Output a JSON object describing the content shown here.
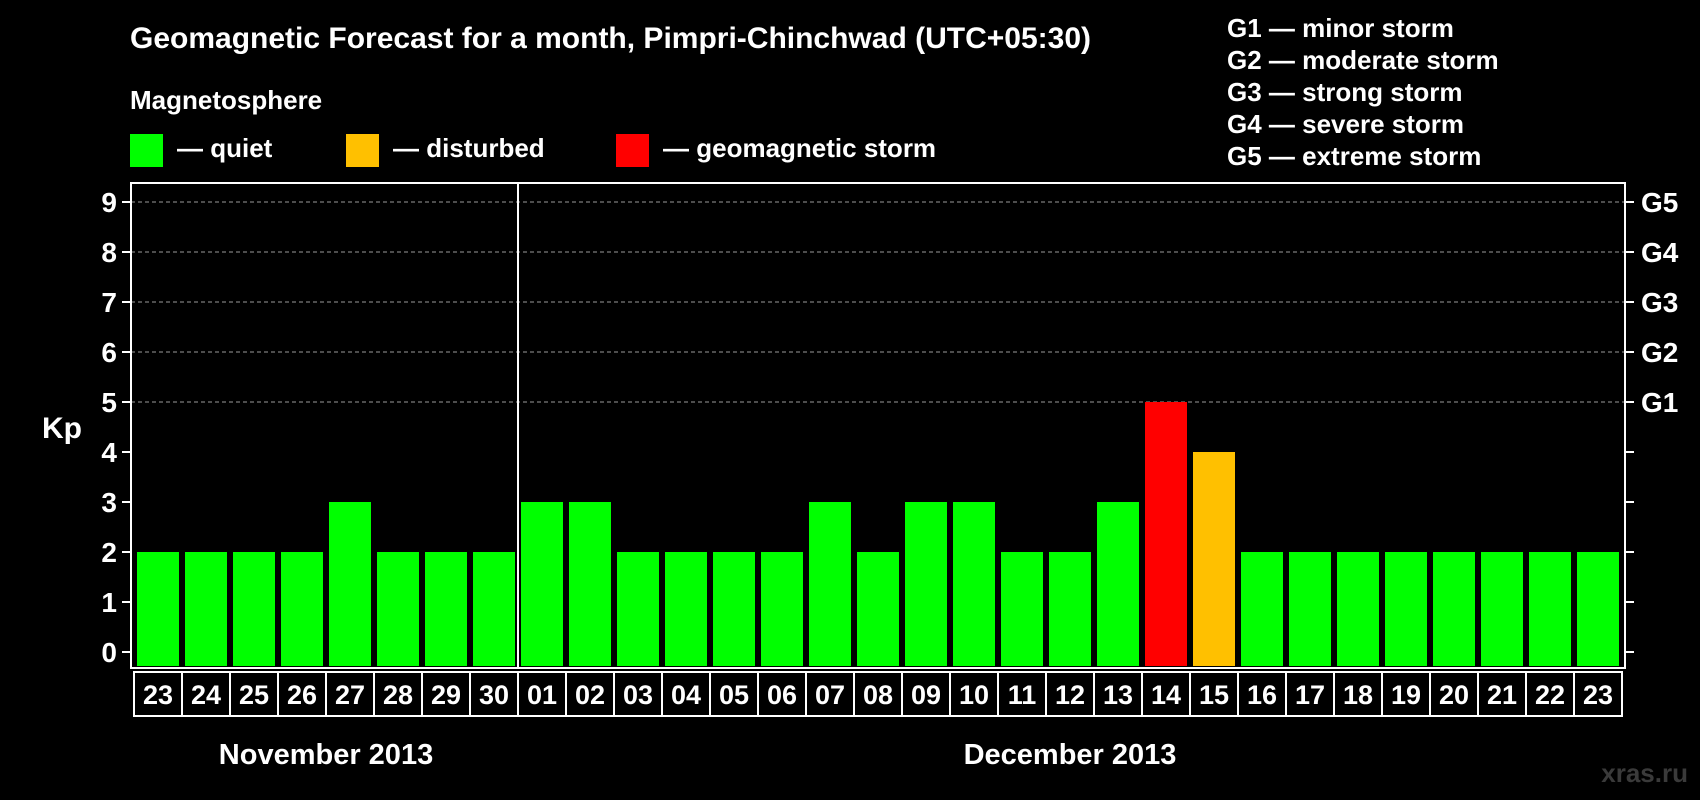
{
  "title": "Geomagnetic Forecast for a month, Pimpri-Chinchwad (UTC+05:30)",
  "legend": {
    "heading": "Magnetosphere",
    "items": [
      {
        "label": "— quiet",
        "color": "#00ff00"
      },
      {
        "label": "— disturbed",
        "color": "#ffc000"
      },
      {
        "label": "— geomagnetic storm",
        "color": "#ff0000"
      }
    ]
  },
  "storm_scale": [
    "G1 — minor storm",
    "G2 — moderate storm",
    "G3 — strong storm",
    "G4 — severe storm",
    "G5 — extreme storm"
  ],
  "watermark": "xras.ru",
  "chart_data": {
    "type": "bar",
    "ylabel": "Kp",
    "ylim": [
      0,
      9
    ],
    "yticks": [
      "0",
      "1",
      "2",
      "3",
      "4",
      "5",
      "6",
      "7",
      "8",
      "9"
    ],
    "right_ticks": [
      {
        "value": 5,
        "label": "G1"
      },
      {
        "value": 6,
        "label": "G2"
      },
      {
        "value": 7,
        "label": "G3"
      },
      {
        "value": 8,
        "label": "G4"
      },
      {
        "value": 9,
        "label": "G5"
      }
    ],
    "grid": "horizontal dashed at 5-9",
    "months": [
      {
        "label": "November 2013",
        "days": [
          "23",
          "24",
          "25",
          "26",
          "27",
          "28",
          "29",
          "30"
        ]
      },
      {
        "label": "December 2013",
        "days": [
          "01",
          "02",
          "03",
          "04",
          "05",
          "06",
          "07",
          "08",
          "09",
          "10",
          "11",
          "12",
          "13",
          "14",
          "15",
          "16",
          "17",
          "18",
          "19",
          "20",
          "21",
          "22",
          "23"
        ]
      }
    ],
    "values": [
      2,
      2,
      2,
      2,
      3,
      2,
      2,
      2,
      3,
      3,
      2,
      2,
      2,
      2,
      3,
      2,
      3,
      3,
      2,
      2,
      3,
      5,
      4,
      2,
      2,
      2,
      2,
      2,
      2,
      2,
      2
    ],
    "status": [
      "quiet",
      "quiet",
      "quiet",
      "quiet",
      "quiet",
      "quiet",
      "quiet",
      "quiet",
      "quiet",
      "quiet",
      "quiet",
      "quiet",
      "quiet",
      "quiet",
      "quiet",
      "quiet",
      "quiet",
      "quiet",
      "quiet",
      "quiet",
      "quiet",
      "geomagnetic storm",
      "disturbed",
      "quiet",
      "quiet",
      "quiet",
      "quiet",
      "quiet",
      "quiet",
      "quiet",
      "quiet"
    ]
  }
}
